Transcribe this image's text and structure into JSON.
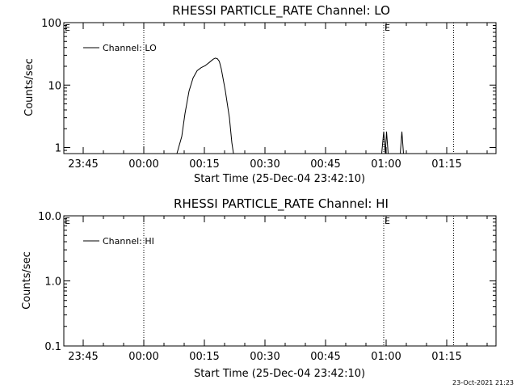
{
  "chart_data": [
    {
      "type": "line",
      "title": "RHESSI PARTICLE_RATE Channel: LO",
      "xlabel": "Start Time (25-Dec-04 23:42:10)",
      "ylabel": "Counts/sec",
      "x_tick_labels": [
        "23:45",
        "00:00",
        "00:15",
        "00:30",
        "00:45",
        "01:00",
        "01:15"
      ],
      "x_tick_minutes": [
        -57.2,
        -42.2,
        -27.2,
        -12.2,
        2.8,
        17.8,
        32.8
      ],
      "xlim_minutes": [
        -62.0,
        45.0
      ],
      "y_scale": "log",
      "ylim": [
        0.8,
        100
      ],
      "y_tick_labels": [
        "1",
        "10",
        "100"
      ],
      "y_tick_values": [
        1,
        10,
        100
      ],
      "legend": {
        "position": "top-left",
        "entries": [
          "Channel: LO"
        ]
      },
      "markers": [
        {
          "label": "E",
          "x_minutes": -62.0
        },
        {
          "label": "E",
          "x_minutes": 17.2
        }
      ],
      "vlines_minutes": [
        -42.2,
        17.2,
        34.5
      ],
      "series": [
        {
          "segments": [
            [
              [
                -34.0,
                0.8
              ],
              [
                -32.8,
                1.5
              ],
              [
                -32.0,
                3.5
              ],
              [
                -31.0,
                8.0
              ],
              [
                -30.0,
                13.0
              ],
              [
                -29.0,
                17.0
              ],
              [
                -28.0,
                19.0
              ],
              [
                -27.0,
                20.5
              ],
              [
                -26.0,
                23.0
              ],
              [
                -25.0,
                26.0
              ],
              [
                -24.5,
                27.0
              ],
              [
                -24.0,
                26.5
              ],
              [
                -23.5,
                24.0
              ],
              [
                -23.0,
                18.0
              ],
              [
                -22.0,
                8.0
              ],
              [
                -21.0,
                3.0
              ],
              [
                -20.4,
                1.2
              ],
              [
                -20.0,
                0.8
              ]
            ],
            [
              [
                16.7,
                0.8
              ],
              [
                17.2,
                1.8
              ],
              [
                17.6,
                0.8
              ],
              [
                17.9,
                1.8
              ],
              [
                18.3,
                0.8
              ]
            ],
            [
              [
                21.3,
                0.8
              ],
              [
                21.7,
                1.8
              ],
              [
                22.1,
                0.8
              ]
            ]
          ]
        }
      ]
    },
    {
      "type": "line",
      "title": "RHESSI PARTICLE_RATE Channel: HI",
      "xlabel": "Start Time (25-Dec-04 23:42:10)",
      "ylabel": "Counts/sec",
      "x_tick_labels": [
        "23:45",
        "00:00",
        "00:15",
        "00:30",
        "00:45",
        "01:00",
        "01:15"
      ],
      "x_tick_minutes": [
        -57.2,
        -42.2,
        -27.2,
        -12.2,
        2.8,
        17.8,
        32.8
      ],
      "xlim_minutes": [
        -62.0,
        45.0
      ],
      "y_scale": "log",
      "ylim": [
        0.1,
        10.0
      ],
      "y_tick_labels": [
        "0.1",
        "1.0",
        "10.0"
      ],
      "y_tick_values": [
        0.1,
        1.0,
        10.0
      ],
      "legend": {
        "position": "top-left",
        "entries": [
          "Channel: HI"
        ]
      },
      "markers": [
        {
          "label": "E",
          "x_minutes": -62.0
        },
        {
          "label": "E",
          "x_minutes": 17.2
        }
      ],
      "vlines_minutes": [
        -42.2,
        17.2,
        34.5
      ],
      "series": [
        {
          "segments": []
        }
      ]
    }
  ],
  "footer": {
    "timestamp": "23-Oct-2021 21:23"
  }
}
